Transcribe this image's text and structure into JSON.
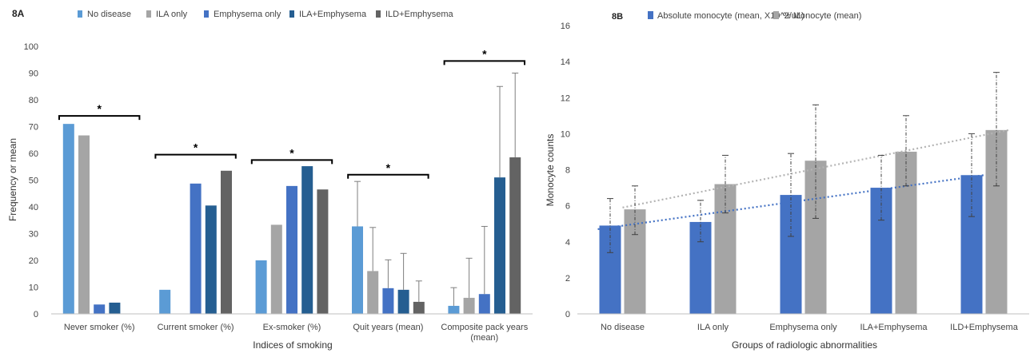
{
  "chart_data": [
    {
      "panel_label": "8A",
      "type": "bar",
      "xlabel": "Indices of smoking",
      "ylabel": "Frequency or mean",
      "ylim": [
        0,
        100
      ],
      "yticks": [
        0,
        10,
        20,
        30,
        40,
        50,
        60,
        70,
        80,
        90,
        100
      ],
      "categories": [
        "Never smoker (%)",
        "Current smoker (%)",
        "Ex-smoker (%)",
        "Quit years (mean)",
        "Composite pack years (mean)"
      ],
      "category_lines": [
        [
          "Never smoker (%)"
        ],
        [
          "Current smoker (%)"
        ],
        [
          "Ex-smoker (%)"
        ],
        [
          "Quit years (mean)"
        ],
        [
          "Composite pack years",
          "(mean)"
        ]
      ],
      "series": [
        {
          "name": "No disease",
          "color": "#5b9bd5",
          "values": [
            71,
            9,
            20,
            32.7,
            3
          ],
          "error_upper": [
            null,
            null,
            null,
            49.5,
            9.8
          ]
        },
        {
          "name": "ILA only",
          "color": "#a5a5a5",
          "values": [
            66.7,
            0,
            33.3,
            16,
            6
          ],
          "error_upper": [
            null,
            null,
            null,
            32.3,
            20.8
          ]
        },
        {
          "name": "Emphysema only",
          "color": "#4472c4",
          "values": [
            3.5,
            48.7,
            47.8,
            9.6,
            7.4
          ],
          "error_upper": [
            null,
            null,
            null,
            20.2,
            32.7
          ]
        },
        {
          "name": "ILA+Emphysema",
          "color": "#255e91",
          "values": [
            4.2,
            40.5,
            55.2,
            9,
            51
          ],
          "error_upper": [
            null,
            null,
            null,
            22.6,
            85
          ]
        },
        {
          "name": "ILD+Emphysema",
          "color": "#636363",
          "values": [
            0,
            53.5,
            46.5,
            4.5,
            58.5
          ],
          "error_upper": [
            null,
            null,
            null,
            12.3,
            90
          ]
        }
      ],
      "significance_brackets": [
        {
          "category": "Never smoker (%)",
          "level": 74,
          "label": "*"
        },
        {
          "category": "Current smoker (%)",
          "level": 59.5,
          "label": "*"
        },
        {
          "category": "Ex-smoker (%)",
          "level": 57.5,
          "label": "*"
        },
        {
          "category": "Quit years (mean)",
          "level": 52,
          "label": "*"
        },
        {
          "category": "Composite pack years (mean)",
          "level": 94.5,
          "label": "*"
        }
      ],
      "legend_position": "top",
      "grid": false
    },
    {
      "panel_label": "8B",
      "type": "bar",
      "xlabel": "Groups of radiologic abnormalities",
      "ylabel": "Monocyte counts",
      "ylim": [
        0,
        16
      ],
      "yticks": [
        0,
        2,
        4,
        6,
        8,
        10,
        12,
        14,
        16
      ],
      "categories": [
        "No disease",
        "ILA only",
        "Emphysema only",
        "ILA+Emphysema",
        "ILD+Emphysema"
      ],
      "series": [
        {
          "name": "Absolute monocyte (mean, X10^2/uL)",
          "color": "#4472c4",
          "trend_color": "#4472c4",
          "values": [
            4.9,
            5.1,
            6.6,
            7.0,
            7.7
          ],
          "error_low": [
            3.4,
            4.0,
            4.3,
            5.2,
            5.4
          ],
          "error_high": [
            6.4,
            6.3,
            8.9,
            8.8,
            10.0
          ],
          "trendline": [
            4.7,
            7.7
          ]
        },
        {
          "name": "% Monocyte (mean)",
          "color": "#a5a5a5",
          "trend_color": "#b4b4b4",
          "values": [
            5.8,
            7.2,
            8.5,
            9.0,
            10.2
          ],
          "error_low": [
            4.4,
            5.6,
            5.3,
            7.1,
            7.1
          ],
          "error_high": [
            7.1,
            8.8,
            11.6,
            11.0,
            13.4
          ],
          "trendline": [
            5.9,
            10.2
          ]
        }
      ],
      "legend_position": "top",
      "grid": false
    }
  ]
}
